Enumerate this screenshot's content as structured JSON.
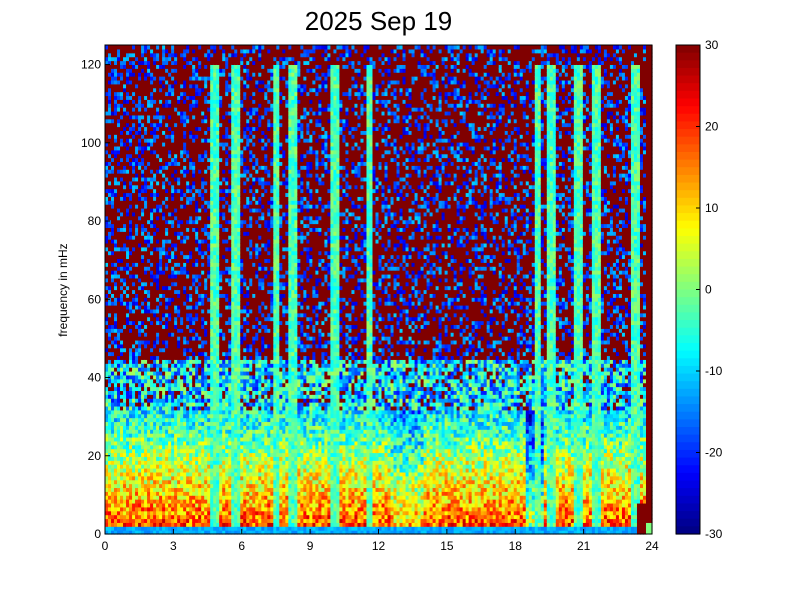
{
  "chart_data": {
    "type": "heatmap",
    "title": "2025 Sep 19",
    "xlabel": "",
    "ylabel": "frequency in mHz",
    "xlim": [
      0,
      24
    ],
    "ylim": [
      0,
      125
    ],
    "x_ticks": [
      "0",
      "3",
      "6",
      "9",
      "12",
      "15",
      "18",
      "21",
      "24"
    ],
    "y_ticks": [
      "0",
      "20",
      "40",
      "60",
      "80",
      "100",
      "120"
    ],
    "colorbar": {
      "colormap": "jet",
      "range": [
        -30,
        30
      ],
      "ticks": [
        "30",
        "20",
        "10",
        "0",
        "-10",
        "-20",
        "-30"
      ]
    },
    "description_levels": {
      "low_freq_band_mhz": [
        0,
        30
      ],
      "noise_floor_above_mhz": 45,
      "strong_event_hour": 23.5,
      "vertical_streak_hours": [
        4.8,
        5.7,
        7.5,
        8.2,
        10.1,
        11.6,
        19.0,
        19.6,
        20.8,
        21.6,
        23.3
      ]
    }
  }
}
